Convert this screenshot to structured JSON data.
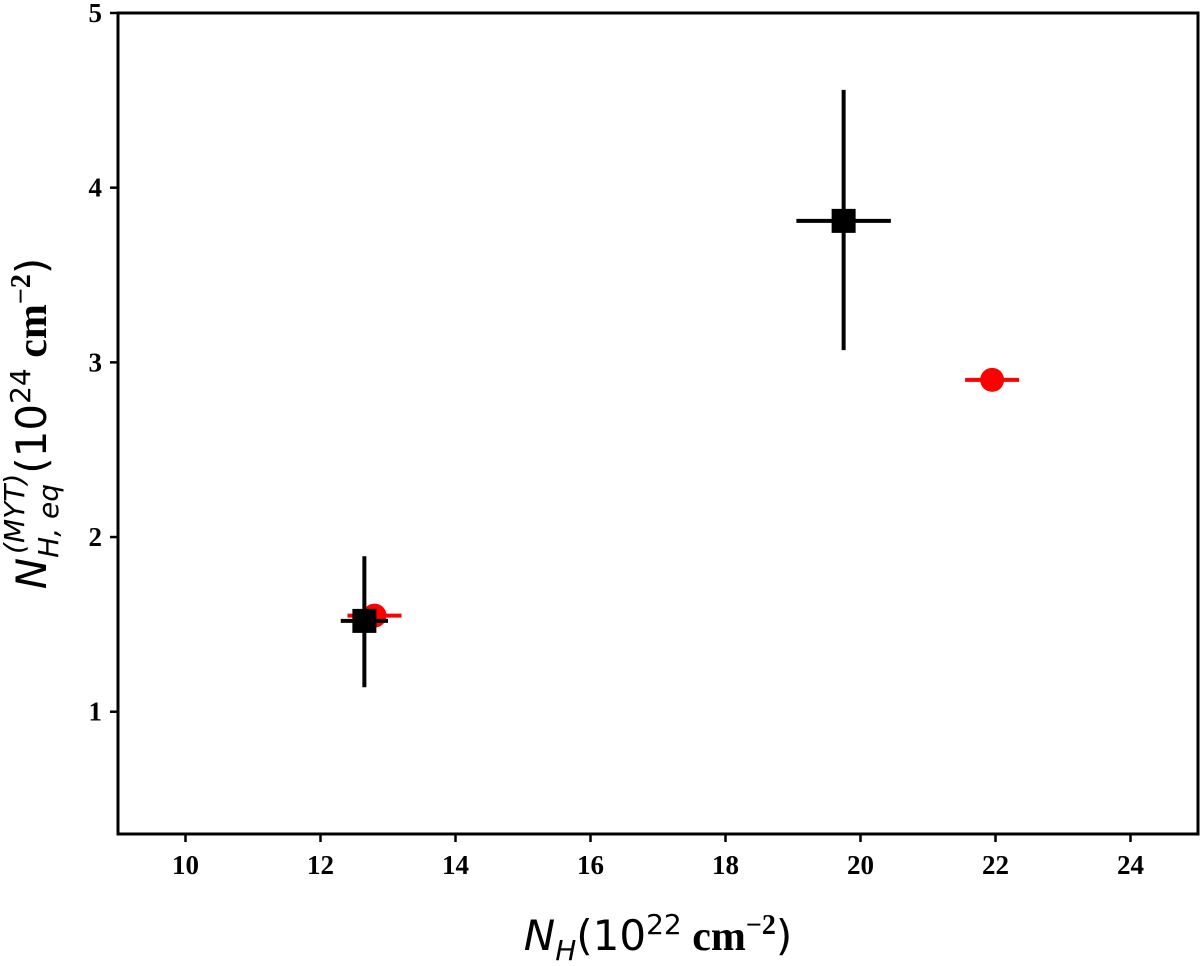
{
  "chart_data": {
    "type": "scatter",
    "xlabel": {
      "symbol": "N",
      "sub": "H",
      "open": "(10",
      "exp": "22",
      "unit": " cm",
      "uexp": "−2",
      "close": ")"
    },
    "ylabel": {
      "symbol": "N",
      "sub": "H, eq",
      "sup": "(MYT)",
      "open": "(10",
      "exp": "24",
      "unit": " cm",
      "uexp": "−2",
      "close": ")"
    },
    "xlim": [
      9,
      25
    ],
    "ylim": [
      0.3,
      5
    ],
    "xticks": [
      10,
      12,
      14,
      16,
      18,
      20,
      22,
      24
    ],
    "yticks": [
      1,
      2,
      3,
      4,
      5
    ],
    "grid": false,
    "series": [
      {
        "marker": "circle",
        "color": "#ff0000",
        "points": [
          {
            "x": 12.8,
            "y": 1.55,
            "xerr": [
              0.4,
              0.4
            ],
            "yerr": [
              0.05,
              0.05
            ]
          },
          {
            "x": 21.95,
            "y": 2.9,
            "xerr": [
              0.4,
              0.4
            ],
            "yerr": [
              0.06,
              0.06
            ]
          }
        ]
      },
      {
        "marker": "square",
        "color": "#000000",
        "points": [
          {
            "x": 12.65,
            "y": 1.52,
            "xerr": [
              0.35,
              0.35
            ],
            "yerr": [
              0.38,
              0.37
            ]
          },
          {
            "x": 19.75,
            "y": 3.81,
            "xerr": [
              0.7,
              0.7
            ],
            "yerr": [
              0.74,
              0.75
            ]
          }
        ]
      }
    ]
  }
}
